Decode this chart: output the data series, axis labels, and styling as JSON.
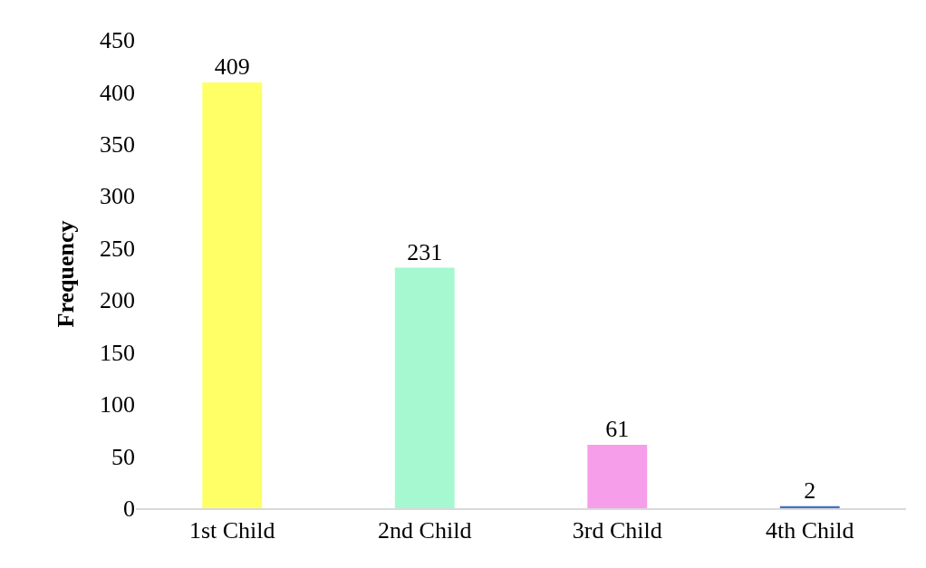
{
  "chart_data": {
    "type": "bar",
    "ylabel": "Frequency",
    "categories": [
      "1st Child",
      "2nd Child",
      "3rd Child",
      "4th Child"
    ],
    "values": [
      409,
      231,
      61,
      2
    ],
    "colors": [
      "#ffff66",
      "#a5f8cf",
      "#f79eea",
      "#4472c4"
    ],
    "ylim": [
      0,
      450
    ],
    "yticks": [
      0,
      50,
      100,
      150,
      200,
      250,
      300,
      350,
      400,
      450
    ],
    "grid": false,
    "data_labels": true
  }
}
